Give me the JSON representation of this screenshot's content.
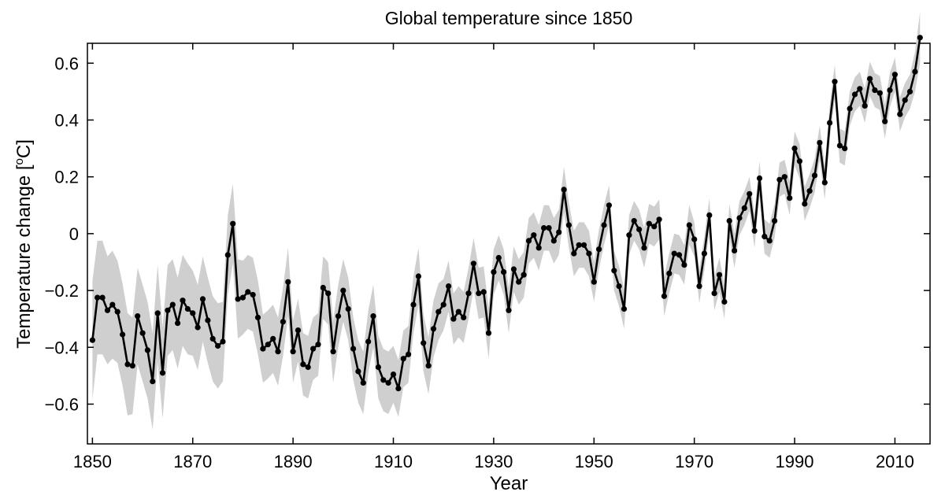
{
  "chart_data": {
    "type": "line",
    "title": "Global temperature since 1850",
    "xlabel": "Year",
    "ylabel_main": "Temperature change  [",
    "ylabel_degree": "o",
    "ylabel_unit": "C]",
    "xlim": [
      1849,
      2017
    ],
    "ylim": [
      -0.74,
      0.67
    ],
    "x_ticks": [
      1850,
      1870,
      1890,
      1910,
      1930,
      1950,
      1970,
      1990,
      2010
    ],
    "y_ticks": [
      -0.6,
      -0.4,
      -0.2,
      0,
      0.2,
      0.4,
      0.6
    ],
    "y_tick_labels": [
      "−0.6",
      "−0.4",
      "−0.2",
      "0",
      "0.2",
      "0.4",
      "0.6"
    ],
    "grid": false,
    "colors": {
      "line": "#000000",
      "band": "#cfcfcf"
    },
    "x_start": 1850,
    "values": [
      -0.375,
      -0.225,
      -0.225,
      -0.27,
      -0.25,
      -0.275,
      -0.355,
      -0.46,
      -0.465,
      -0.29,
      -0.35,
      -0.41,
      -0.52,
      -0.28,
      -0.49,
      -0.27,
      -0.25,
      -0.315,
      -0.235,
      -0.265,
      -0.28,
      -0.33,
      -0.23,
      -0.305,
      -0.37,
      -0.395,
      -0.38,
      -0.075,
      0.035,
      -0.23,
      -0.225,
      -0.205,
      -0.215,
      -0.295,
      -0.405,
      -0.39,
      -0.37,
      -0.415,
      -0.31,
      -0.17,
      -0.415,
      -0.34,
      -0.46,
      -0.47,
      -0.405,
      -0.39,
      -0.19,
      -0.21,
      -0.415,
      -0.29,
      -0.2,
      -0.265,
      -0.405,
      -0.485,
      -0.525,
      -0.38,
      -0.29,
      -0.47,
      -0.515,
      -0.525,
      -0.495,
      -0.545,
      -0.44,
      -0.425,
      -0.25,
      -0.15,
      -0.385,
      -0.465,
      -0.335,
      -0.275,
      -0.25,
      -0.185,
      -0.3,
      -0.275,
      -0.295,
      -0.21,
      -0.105,
      -0.21,
      -0.205,
      -0.35,
      -0.135,
      -0.085,
      -0.135,
      -0.27,
      -0.125,
      -0.17,
      -0.145,
      -0.025,
      -0.005,
      -0.05,
      0.02,
      0.02,
      -0.025,
      0.005,
      0.155,
      0.03,
      -0.07,
      -0.04,
      -0.04,
      -0.07,
      -0.17,
      -0.055,
      0.03,
      0.1,
      -0.13,
      -0.185,
      -0.265,
      -0.005,
      0.045,
      0.015,
      -0.05,
      0.035,
      0.025,
      0.05,
      -0.22,
      -0.14,
      -0.07,
      -0.075,
      -0.11,
      0.03,
      -0.02,
      -0.185,
      -0.07,
      0.065,
      -0.21,
      -0.145,
      -0.24,
      0.045,
      -0.06,
      0.055,
      0.09,
      0.14,
      0.01,
      0.195,
      -0.01,
      -0.025,
      0.045,
      0.19,
      0.2,
      0.125,
      0.3,
      0.255,
      0.105,
      0.15,
      0.205,
      0.32,
      0.18,
      0.39,
      0.535,
      0.31,
      0.3,
      0.44,
      0.49,
      0.51,
      0.45,
      0.545,
      0.505,
      0.495,
      0.395,
      0.505,
      0.56,
      0.42,
      0.47,
      0.5,
      0.57,
      0.69
    ],
    "band_half_width": [
      0.21,
      0.2,
      0.2,
      0.19,
      0.19,
      0.18,
      0.18,
      0.18,
      0.17,
      0.17,
      0.17,
      0.17,
      0.17,
      0.17,
      0.16,
      0.16,
      0.16,
      0.16,
      0.16,
      0.16,
      0.15,
      0.15,
      0.15,
      0.15,
      0.15,
      0.15,
      0.14,
      0.14,
      0.14,
      0.14,
      0.13,
      0.13,
      0.13,
      0.13,
      0.12,
      0.12,
      0.12,
      0.12,
      0.12,
      0.12,
      0.11,
      0.11,
      0.11,
      0.11,
      0.11,
      0.11,
      0.11,
      0.11,
      0.11,
      0.11,
      0.11,
      0.11,
      0.11,
      0.11,
      0.11,
      0.11,
      0.11,
      0.11,
      0.11,
      0.11,
      0.1,
      0.1,
      0.1,
      0.1,
      0.1,
      0.1,
      0.1,
      0.1,
      0.1,
      0.1,
      0.09,
      0.09,
      0.09,
      0.09,
      0.09,
      0.09,
      0.09,
      0.09,
      0.09,
      0.09,
      0.08,
      0.08,
      0.08,
      0.08,
      0.08,
      0.08,
      0.08,
      0.08,
      0.08,
      0.08,
      0.08,
      0.08,
      0.08,
      0.08,
      0.08,
      0.08,
      0.08,
      0.08,
      0.08,
      0.08,
      0.07,
      0.07,
      0.07,
      0.07,
      0.07,
      0.07,
      0.07,
      0.07,
      0.07,
      0.07,
      0.07,
      0.07,
      0.07,
      0.07,
      0.07,
      0.07,
      0.07,
      0.07,
      0.07,
      0.07,
      0.06,
      0.06,
      0.06,
      0.06,
      0.06,
      0.06,
      0.06,
      0.06,
      0.06,
      0.06,
      0.06,
      0.06,
      0.06,
      0.06,
      0.06,
      0.06,
      0.06,
      0.06,
      0.06,
      0.06,
      0.06,
      0.06,
      0.06,
      0.06,
      0.06,
      0.06,
      0.06,
      0.06,
      0.06,
      0.06,
      0.06,
      0.06,
      0.06,
      0.06,
      0.06,
      0.06,
      0.06,
      0.06,
      0.06,
      0.06,
      0.06,
      0.06,
      0.06,
      0.06,
      0.07,
      0.09
    ]
  }
}
